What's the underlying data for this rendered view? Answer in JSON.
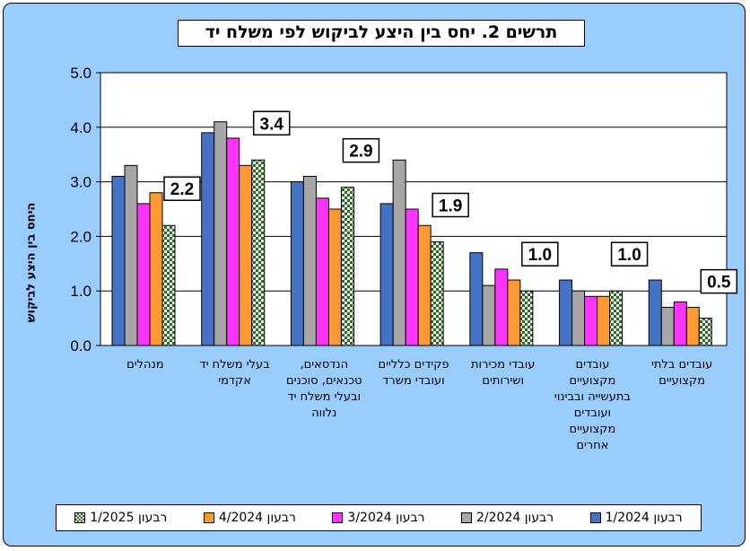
{
  "chart_data": {
    "type": "bar",
    "title": "תרשים 2. יחס בין היצע לביקוש לפי משלח יד",
    "ylabel": "היחס בין היצע לביקוש",
    "ylim": [
      0,
      5
    ],
    "yticks": [
      "0.0",
      "1.0",
      "2.0",
      "3.0",
      "4.0",
      "5.0"
    ],
    "grid": true,
    "legend_position": "bottom",
    "categories": [
      "מנהלים",
      "בעלי משלח יד אקדמי",
      "הנדסאים, טכנאים, סוכנים ובעלי משלח יד נלווה",
      "פקידים כלליים ועובדי משרד",
      "עובדי מכירות ושירותים",
      "עובדים מקצועיים בתעשייה ובבינוי ועובדים מקצועיים אחרים",
      "עובדים בלתי מקצועיים"
    ],
    "series": [
      {
        "name": "רבעון 1/2024",
        "color": "#4472c4",
        "values": [
          3.1,
          3.9,
          3.0,
          2.6,
          1.7,
          1.2,
          1.2
        ]
      },
      {
        "name": "רבעון 2/2024",
        "color": "#a6a6a6",
        "values": [
          3.3,
          4.1,
          3.1,
          3.4,
          1.1,
          1.0,
          0.7
        ]
      },
      {
        "name": "רבעון 3/2024",
        "color": "#ff33ff",
        "values": [
          2.6,
          3.8,
          2.7,
          2.5,
          1.4,
          0.9,
          0.8
        ]
      },
      {
        "name": "רבעון 4/2024",
        "color": "#ff9933",
        "values": [
          2.8,
          3.3,
          2.5,
          2.2,
          1.2,
          0.9,
          0.7
        ]
      },
      {
        "name": "רבעון 1/2025",
        "color": "#336633",
        "pattern": "checker",
        "values": [
          2.2,
          3.4,
          2.9,
          1.9,
          1.0,
          1.0,
          0.5
        ]
      }
    ],
    "data_labels": [
      "2.2",
      "3.4",
      "2.9",
      "1.9",
      "1.0",
      "1.0",
      "0.5"
    ]
  }
}
